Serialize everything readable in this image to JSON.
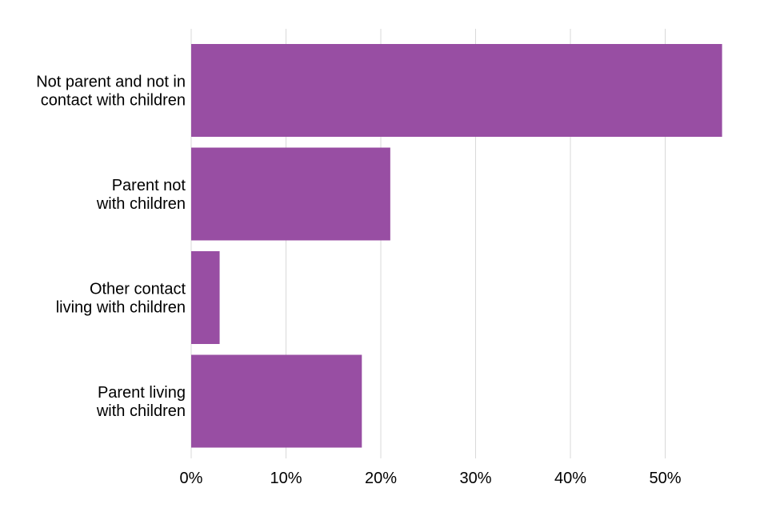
{
  "chart_data": {
    "type": "bar",
    "orientation": "horizontal",
    "categories": [
      [
        "Not parent and not in",
        "contact with children"
      ],
      [
        "Parent not",
        "with children"
      ],
      [
        "Other contact",
        "living with children"
      ],
      [
        "Parent living",
        "with children"
      ]
    ],
    "values": [
      56,
      21,
      3,
      18
    ],
    "x_ticks": [
      "0%",
      "10%",
      "20%",
      "30%",
      "40%",
      "50%"
    ],
    "xlim": [
      0,
      56
    ],
    "grid": true,
    "legend": "none",
    "bar_color": "#984ea3"
  }
}
